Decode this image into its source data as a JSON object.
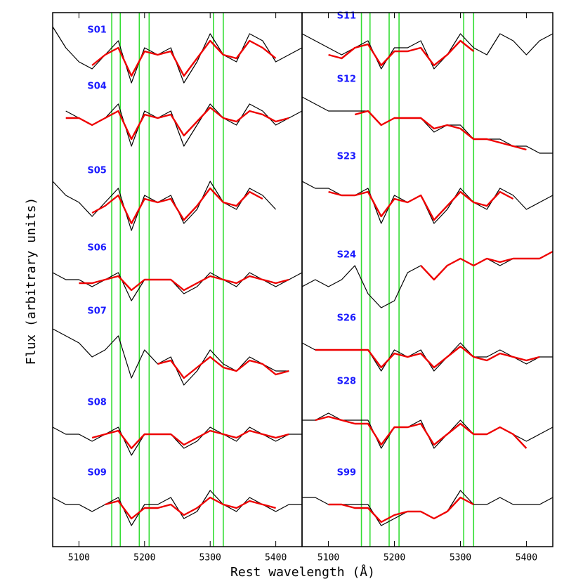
{
  "axis_labels": {
    "x": "Rest wavelength (Å)",
    "y": "Flux (arbitrary units)"
  },
  "chart_data": [
    {
      "type": "line",
      "xlim": [
        5060,
        5440
      ],
      "xticks": [
        5100,
        5200,
        5300,
        5400
      ],
      "ylim": [
        0,
        76
      ],
      "observed_color": "#000000",
      "model_color": "#ee0000",
      "label_color": "#1a1aff",
      "vline_color": "#33dd33",
      "vlines": [
        5150,
        5163,
        5192,
        5207,
        5305,
        5320
      ],
      "x": [
        5060,
        5080,
        5100,
        5120,
        5140,
        5160,
        5180,
        5200,
        5220,
        5240,
        5260,
        5280,
        5300,
        5320,
        5340,
        5360,
        5380,
        5400,
        5420,
        5440
      ],
      "spectra": [
        {
          "label": "S01",
          "observed": [
            74,
            71,
            69,
            68,
            70,
            72,
            66,
            71,
            70,
            71,
            66,
            69,
            73,
            70,
            69,
            73,
            72,
            69,
            70,
            71
          ],
          "model": [
            null,
            null,
            null,
            68.5,
            70,
            71,
            67,
            70.5,
            70,
            70.5,
            67,
            69.5,
            72,
            70,
            69.5,
            72,
            71,
            69.5,
            null,
            null
          ]
        },
        {
          "label": "S04",
          "observed": [
            null,
            62,
            61,
            60,
            61,
            63,
            57,
            62,
            61,
            62,
            57,
            60,
            63,
            61,
            60,
            63,
            62,
            60,
            61,
            62
          ],
          "model": [
            null,
            61,
            61,
            60,
            61,
            62,
            58,
            61.5,
            61,
            61.5,
            58.5,
            60.5,
            62.5,
            61,
            60.5,
            62,
            61.5,
            60.5,
            61,
            null
          ]
        },
        {
          "label": "S05",
          "observed": [
            52,
            50,
            49,
            47,
            49,
            51,
            45,
            50,
            49,
            50,
            46,
            48,
            52,
            49,
            48,
            51,
            50,
            48,
            null,
            null
          ],
          "model": [
            null,
            null,
            null,
            47.5,
            48.5,
            50,
            46,
            49.5,
            49,
            49.5,
            46.5,
            48.5,
            51,
            49,
            48.5,
            50.5,
            49.5,
            null,
            null,
            null
          ]
        },
        {
          "label": "S06",
          "observed": [
            39,
            38,
            38,
            37,
            38,
            39,
            35,
            38,
            38,
            38,
            36,
            37,
            39,
            38,
            37,
            39,
            38,
            37,
            38,
            39
          ],
          "model": [
            null,
            null,
            37.5,
            37.5,
            38,
            38.5,
            36.5,
            38,
            38,
            38,
            36.5,
            37.5,
            38.5,
            38,
            37.5,
            38.5,
            38,
            37.5,
            38,
            null
          ]
        },
        {
          "label": "S07",
          "observed": [
            31,
            30,
            29,
            27,
            28,
            30,
            24,
            28,
            26,
            27,
            23,
            25,
            28,
            26,
            25,
            27,
            26,
            25,
            25,
            null
          ],
          "model": [
            null,
            null,
            null,
            null,
            null,
            null,
            null,
            null,
            26,
            26.5,
            24,
            25.5,
            27,
            25.5,
            25,
            26.5,
            26,
            24.5,
            25,
            null
          ]
        },
        {
          "label": "S08",
          "observed": [
            17,
            16,
            16,
            15,
            16,
            17,
            13,
            16,
            16,
            16,
            14,
            15,
            17,
            16,
            15,
            17,
            16,
            15,
            16,
            16
          ],
          "model": [
            null,
            null,
            null,
            15.5,
            16,
            16.5,
            14,
            16,
            16,
            16,
            14.5,
            15.5,
            16.5,
            16,
            15.5,
            16.5,
            16,
            15.5,
            16,
            null
          ]
        },
        {
          "label": "S09",
          "observed": [
            7,
            6,
            6,
            5,
            6,
            7,
            3,
            6,
            6,
            7,
            4,
            5,
            8,
            6,
            5,
            7,
            6,
            5,
            6,
            6
          ],
          "model": [
            null,
            null,
            null,
            null,
            6,
            6.5,
            4,
            5.5,
            5.5,
            6,
            4.5,
            5.5,
            7,
            6,
            5.5,
            6.5,
            6,
            5.5,
            null,
            null
          ]
        }
      ]
    },
    {
      "type": "line",
      "xlim": [
        5060,
        5440
      ],
      "xticks": [
        5100,
        5200,
        5300,
        5400
      ],
      "ylim": [
        0,
        76
      ],
      "observed_color": "#000000",
      "model_color": "#ee0000",
      "label_color": "#1a1aff",
      "vline_color": "#33dd33",
      "vlines": [
        5150,
        5163,
        5192,
        5207,
        5305,
        5320
      ],
      "x": [
        5060,
        5080,
        5100,
        5120,
        5140,
        5160,
        5180,
        5200,
        5220,
        5240,
        5260,
        5280,
        5300,
        5320,
        5340,
        5360,
        5380,
        5400,
        5420,
        5440
      ],
      "spectra": [
        {
          "label": "S11",
          "observed": [
            73,
            72,
            71,
            70,
            71,
            72,
            68,
            71,
            71,
            72,
            68,
            70,
            73,
            71,
            70,
            73,
            72,
            70,
            72,
            73
          ],
          "model": [
            null,
            null,
            70,
            69.5,
            71,
            71.5,
            68.5,
            70.5,
            70.5,
            71,
            68.5,
            70,
            72,
            70.5,
            null,
            null,
            null,
            null,
            null,
            null
          ]
        },
        {
          "label": "S12",
          "observed": [
            64,
            63,
            62,
            62,
            62,
            62,
            60,
            61,
            61,
            61,
            59,
            60,
            60,
            58,
            58,
            58,
            57,
            57,
            56,
            56
          ],
          "model": [
            null,
            null,
            null,
            null,
            61.5,
            62,
            60,
            61,
            61,
            61,
            59.5,
            60,
            59.5,
            58,
            58,
            57.5,
            57,
            56.5,
            null,
            null
          ]
        },
        {
          "label": "S23",
          "observed": [
            52,
            51,
            51,
            50,
            50,
            51,
            46,
            50,
            49,
            50,
            46,
            48,
            51,
            49,
            48,
            51,
            50,
            48,
            49,
            50
          ],
          "model": [
            null,
            null,
            50.5,
            50,
            50,
            50.5,
            47,
            49.5,
            49,
            50,
            46.5,
            48.5,
            50.5,
            49,
            48.5,
            50.5,
            49.5,
            null,
            null,
            null
          ]
        },
        {
          "label": "S24",
          "observed": [
            37,
            38,
            37,
            38,
            40,
            36,
            34,
            35,
            39,
            40,
            38,
            40,
            41,
            40,
            41,
            40,
            41,
            41,
            41,
            42
          ],
          "model": [
            null,
            null,
            null,
            null,
            null,
            null,
            null,
            null,
            null,
            40,
            38,
            40,
            41,
            40,
            41,
            40.5,
            41,
            41,
            41,
            42
          ]
        },
        {
          "label": "S26",
          "observed": [
            29,
            28,
            28,
            28,
            28,
            28,
            25,
            28,
            27,
            28,
            25,
            27,
            29,
            27,
            27,
            28,
            27,
            26,
            27,
            27
          ],
          "model": [
            null,
            28,
            28,
            28,
            28,
            28,
            25.5,
            27.5,
            27,
            27.5,
            25.5,
            27,
            28.5,
            27,
            26.5,
            27.5,
            27,
            26.5,
            27,
            null
          ]
        },
        {
          "label": "S28",
          "observed": [
            18,
            18,
            19,
            18,
            18,
            18,
            14,
            17,
            17,
            18,
            14,
            16,
            18,
            16,
            16,
            17,
            16,
            15,
            16,
            17
          ],
          "model": [
            null,
            18,
            18.5,
            18,
            17.5,
            17.5,
            14.5,
            17,
            17,
            17.5,
            14.5,
            16,
            17.5,
            16,
            16,
            17,
            16,
            14,
            null,
            null
          ]
        },
        {
          "label": "S99",
          "observed": [
            7,
            7,
            6,
            6,
            6,
            6,
            3,
            4,
            5,
            5,
            4,
            5,
            8,
            6,
            6,
            7,
            6,
            6,
            6,
            7
          ],
          "model": [
            null,
            null,
            6,
            6,
            5.5,
            5.5,
            3.5,
            4.5,
            5,
            5,
            4,
            5,
            7,
            6,
            null,
            null,
            null,
            null,
            null,
            null
          ]
        }
      ]
    }
  ]
}
